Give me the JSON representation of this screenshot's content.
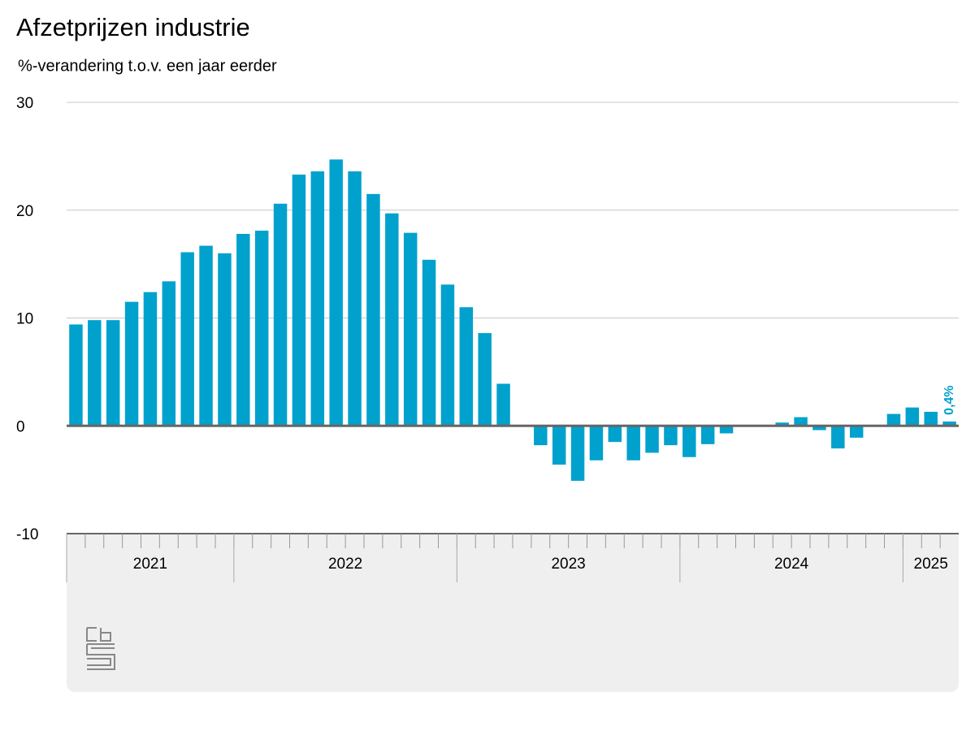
{
  "chart_data": {
    "type": "bar",
    "title": "Afzetprijzen industrie",
    "subtitle": "%-verandering t.o.v. een jaar eerder",
    "categories": [
      null,
      null,
      null,
      null,
      null,
      null,
      null,
      null,
      null,
      null,
      null,
      null,
      null,
      null,
      null,
      null,
      null,
      null,
      null,
      null,
      null,
      null,
      null,
      null,
      null,
      null,
      null,
      null,
      null,
      null,
      null,
      null,
      null,
      null,
      null,
      null,
      null,
      null,
      null,
      null,
      null,
      null,
      null,
      null,
      null,
      null,
      null,
      null
    ],
    "values": [
      9.4,
      9.8,
      9.8,
      11.5,
      12.4,
      13.4,
      16.1,
      16.7,
      16.0,
      17.8,
      18.1,
      20.6,
      23.3,
      23.6,
      24.7,
      23.6,
      21.5,
      19.7,
      17.9,
      15.4,
      13.1,
      11.0,
      8.6,
      3.9,
      0.0,
      -1.8,
      -3.6,
      -5.1,
      -3.2,
      -1.5,
      -3.2,
      -2.5,
      -1.8,
      -2.9,
      -1.7,
      -0.7,
      0.0,
      0.0,
      0.3,
      0.8,
      -0.4,
      -2.1,
      -1.1,
      0.0,
      1.1,
      1.7,
      1.3,
      0.4
    ],
    "value_labels": [
      null,
      null,
      null,
      null,
      null,
      null,
      null,
      null,
      null,
      null,
      null,
      null,
      null,
      null,
      null,
      null,
      null,
      null,
      null,
      null,
      null,
      null,
      null,
      null,
      null,
      null,
      null,
      null,
      null,
      null,
      null,
      null,
      null,
      null,
      null,
      null,
      null,
      null,
      null,
      null,
      null,
      null,
      null,
      null,
      null,
      null,
      null,
      "0,4%"
    ],
    "year_groups": [
      {
        "label": "2021",
        "months": 9
      },
      {
        "label": "2022",
        "months": 12
      },
      {
        "label": "2023",
        "months": 12
      },
      {
        "label": "2024",
        "months": 12
      },
      {
        "label": "2025",
        "months": 3
      }
    ],
    "color": "#00a1cd",
    "ylim": [
      -10,
      30
    ],
    "yticks": [
      -10,
      0,
      10,
      20,
      30
    ],
    "grid": true
  }
}
